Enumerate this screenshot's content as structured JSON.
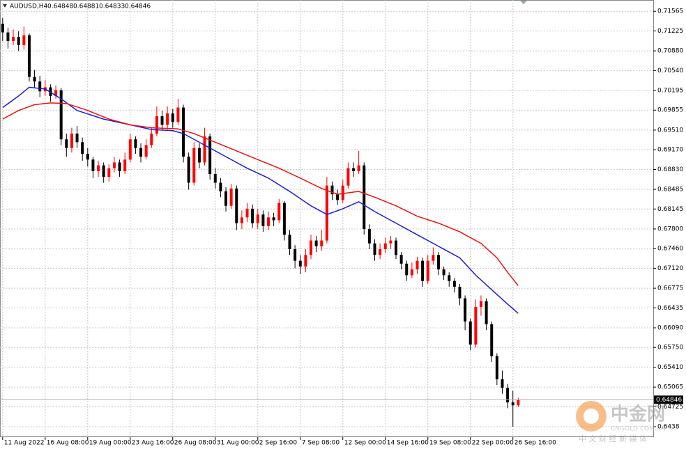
{
  "chart_data": {
    "type": "candlestick",
    "symbol": "AUDUSD,H4",
    "ohlc": [
      0.64848,
      0.64881,
      0.64833,
      0.64846
    ],
    "up_color": "#ff0000",
    "down_color": "#000000",
    "grid": true,
    "ylim": [
      0.642,
      0.7176
    ],
    "yticks": [
      0.71565,
      0.71225,
      {
        "value": 0.7088,
        "label": "0.70880"
      },
      {
        "value": 0.7054,
        "label": "0.70540"
      },
      0.70195,
      0.69855,
      {
        "value": 0.6951,
        "label": "0.69510"
      },
      {
        "value": 0.6917,
        "label": "0.69170"
      },
      {
        "value": 0.6883,
        "label": "0.68830"
      },
      0.68485,
      0.68145,
      {
        "value": 0.678,
        "label": "0.67800"
      },
      {
        "value": 0.6746,
        "label": "0.67460"
      },
      {
        "value": 0.6712,
        "label": "0.67120"
      },
      0.66775,
      0.66435,
      {
        "value": 0.6609,
        "label": "0.66090"
      },
      {
        "value": 0.6575,
        "label": "0.65750"
      },
      {
        "value": 0.6541,
        "label": "0.65410"
      },
      0.65065,
      0.64725,
      0.6438
    ],
    "xlim": [
      -0.5,
      122.4
    ],
    "xticks": [
      {
        "value": 0,
        "label": "11 Aug 2022"
      },
      {
        "value": 8,
        "label": "16 Aug 08:00"
      },
      {
        "value": 16,
        "label": "19 Aug 00:00"
      },
      {
        "value": 24,
        "label": "23 Aug 16:00"
      },
      {
        "value": 32,
        "label": "26 Aug 08:00"
      },
      {
        "value": 40,
        "label": "31 Aug 00:00"
      },
      {
        "value": 48,
        "label": "2 Sep 16:00"
      },
      {
        "value": 56,
        "label": "7 Sep 08:00"
      },
      {
        "value": 64,
        "label": "12 Sep 00:00"
      },
      {
        "value": 72,
        "label": "14 Sep 16:00"
      },
      {
        "value": 80,
        "label": "19 Sep 08:00"
      },
      {
        "value": 88,
        "label": "22 Sep 00:00"
      },
      {
        "value": 96,
        "label": "26 Sep 16:00"
      }
    ],
    "open": [
      0.7135,
      0.712,
      0.7105,
      0.7112,
      0.7098,
      0.7115,
      0.7043,
      0.7035,
      0.7018,
      0.7025,
      0.701,
      0.702,
      0.6935,
      0.692,
      0.6945,
      0.693,
      0.691,
      0.69,
      0.688,
      0.689,
      0.687,
      0.6885,
      0.6895,
      0.688,
      0.69,
      0.6935,
      0.692,
      0.6905,
      0.6925,
      0.6945,
      0.6975,
      0.696,
      0.698,
      0.6965,
      0.699,
      0.6905,
      0.686,
      0.692,
      0.6895,
      0.694,
      0.6875,
      0.686,
      0.6845,
      0.682,
      0.685,
      0.679,
      0.68,
      0.6815,
      0.679,
      0.6805,
      0.6785,
      0.68,
      0.6795,
      0.6825,
      0.677,
      0.6745,
      0.6725,
      0.6715,
      0.6735,
      0.676,
      0.675,
      0.676,
      0.6855,
      0.684,
      0.683,
      0.6855,
      0.6885,
      0.688,
      0.689,
      0.678,
      0.6755,
      0.6735,
      0.6745,
      0.6755,
      0.676,
      0.6735,
      0.672,
      0.67,
      0.671,
      0.6725,
      0.669,
      0.6725,
      0.6735,
      0.671,
      0.67,
      0.669,
      0.668,
      0.666,
      0.662,
      0.658,
      0.6645,
      0.6655,
      0.6615,
      0.656,
      0.652,
      0.6505,
      0.648,
      0.6475
    ],
    "high": [
      0.7145,
      0.7128,
      0.7125,
      0.7122,
      0.713,
      0.7118,
      0.7055,
      0.7045,
      0.7038,
      0.703,
      0.7028,
      0.7024,
      0.6945,
      0.6955,
      0.6958,
      0.6938,
      0.692,
      0.6905,
      0.6898,
      0.6895,
      0.6892,
      0.6905,
      0.69,
      0.6912,
      0.6945,
      0.694,
      0.6928,
      0.6935,
      0.6955,
      0.6992,
      0.6985,
      0.6992,
      0.6988,
      0.7005,
      0.6995,
      0.6912,
      0.693,
      0.6928,
      0.6955,
      0.6945,
      0.6885,
      0.6868,
      0.6852,
      0.6858,
      0.6855,
      0.6812,
      0.6825,
      0.6822,
      0.6815,
      0.6812,
      0.681,
      0.6808,
      0.6832,
      0.6828,
      0.6778,
      0.6752,
      0.6735,
      0.6745,
      0.677,
      0.6768,
      0.6778,
      0.687,
      0.6862,
      0.6848,
      0.6865,
      0.6895,
      0.6895,
      0.6915,
      0.6895,
      0.6788,
      0.6762,
      0.6755,
      0.6765,
      0.6768,
      0.6765,
      0.674,
      0.6725,
      0.6722,
      0.6732,
      0.673,
      0.6735,
      0.6748,
      0.674,
      0.6715,
      0.6705,
      0.6695,
      0.6685,
      0.6665,
      0.6625,
      0.6658,
      0.6665,
      0.666,
      0.662,
      0.6565,
      0.6535,
      0.6512,
      0.65,
      0.6488
    ],
    "low": [
      0.7105,
      0.7092,
      0.7098,
      0.7088,
      0.709,
      0.7035,
      0.7025,
      0.7008,
      0.701,
      0.7,
      0.7005,
      0.6925,
      0.6905,
      0.6912,
      0.692,
      0.6898,
      0.6888,
      0.6868,
      0.687,
      0.686,
      0.6862,
      0.6878,
      0.687,
      0.6875,
      0.6895,
      0.691,
      0.6895,
      0.69,
      0.692,
      0.694,
      0.695,
      0.6952,
      0.6955,
      0.696,
      0.6895,
      0.6848,
      0.6855,
      0.6885,
      0.689,
      0.6865,
      0.685,
      0.6835,
      0.681,
      0.6815,
      0.6778,
      0.678,
      0.6792,
      0.6782,
      0.678,
      0.6775,
      0.6778,
      0.6785,
      0.679,
      0.676,
      0.6735,
      0.6712,
      0.6702,
      0.6705,
      0.6728,
      0.674,
      0.6742,
      0.6755,
      0.683,
      0.6822,
      0.6825,
      0.685,
      0.687,
      0.6875,
      0.677,
      0.6745,
      0.6725,
      0.6728,
      0.6738,
      0.6745,
      0.6728,
      0.671,
      0.669,
      0.6695,
      0.6702,
      0.668,
      0.6685,
      0.6718,
      0.67,
      0.6692,
      0.668,
      0.667,
      0.6648,
      0.6605,
      0.657,
      0.6575,
      0.663,
      0.6605,
      0.655,
      0.651,
      0.6495,
      0.647,
      0.6438,
      0.6472
    ],
    "close": [
      0.712,
      0.7105,
      0.7112,
      0.7098,
      0.7115,
      0.7043,
      0.7035,
      0.7018,
      0.7025,
      0.701,
      0.702,
      0.6935,
      0.692,
      0.6945,
      0.693,
      0.691,
      0.69,
      0.688,
      0.689,
      0.687,
      0.6885,
      0.6895,
      0.688,
      0.69,
      0.6935,
      0.692,
      0.6905,
      0.6925,
      0.6945,
      0.6975,
      0.696,
      0.698,
      0.6965,
      0.699,
      0.6905,
      0.686,
      0.692,
      0.6895,
      0.694,
      0.6875,
      0.686,
      0.6845,
      0.682,
      0.685,
      0.679,
      0.68,
      0.6815,
      0.679,
      0.6805,
      0.6785,
      0.68,
      0.6795,
      0.6825,
      0.677,
      0.6745,
      0.6725,
      0.6715,
      0.6735,
      0.676,
      0.675,
      0.676,
      0.6855,
      0.684,
      0.683,
      0.6855,
      0.6885,
      0.688,
      0.689,
      0.678,
      0.6755,
      0.6735,
      0.6745,
      0.6755,
      0.676,
      0.6735,
      0.672,
      0.67,
      0.671,
      0.6725,
      0.669,
      0.6725,
      0.6735,
      0.671,
      0.67,
      0.669,
      0.668,
      0.666,
      0.662,
      0.658,
      0.6645,
      0.6655,
      0.6615,
      0.656,
      0.652,
      0.6505,
      0.648,
      0.6475,
      0.6485
    ],
    "series": [
      {
        "color": "#1c1cd6",
        "x": [
          0,
          3,
          5,
          8,
          11,
          14,
          19,
          24,
          28,
          32,
          34,
          38,
          42,
          46,
          50,
          54,
          58,
          61,
          64,
          67,
          70,
          74,
          78,
          82,
          86,
          89,
          92,
          95,
          97
        ],
        "values": [
          0.699,
          0.701,
          0.7025,
          0.7022,
          0.7005,
          0.6985,
          0.697,
          0.696,
          0.6952,
          0.695,
          0.6945,
          0.6925,
          0.6905,
          0.6885,
          0.6868,
          0.6845,
          0.682,
          0.6805,
          0.6815,
          0.6827,
          0.681,
          0.679,
          0.677,
          0.675,
          0.673,
          0.67,
          0.6675,
          0.665,
          0.6634
        ]
      },
      {
        "color": "#ee1111",
        "x": [
          0,
          3,
          6,
          9,
          12,
          16,
          20,
          24,
          28,
          33,
          36,
          40,
          44,
          48,
          52,
          56,
          60,
          63,
          67,
          70,
          74,
          78,
          82,
          86,
          90,
          93,
          95,
          97
        ],
        "values": [
          0.697,
          0.6985,
          0.6995,
          0.6998,
          0.6997,
          0.6985,
          0.697,
          0.696,
          0.6955,
          0.6953,
          0.6945,
          0.693,
          0.6915,
          0.69,
          0.6885,
          0.6868,
          0.685,
          0.684,
          0.6845,
          0.6835,
          0.682,
          0.6802,
          0.679,
          0.6775,
          0.6755,
          0.673,
          0.6705,
          0.6682
        ]
      }
    ],
    "watermark": {
      "name": "中金网",
      "site": "CNGOLD.COM.CN",
      "slogan": "中 文 财 经 新 媒 体"
    }
  }
}
